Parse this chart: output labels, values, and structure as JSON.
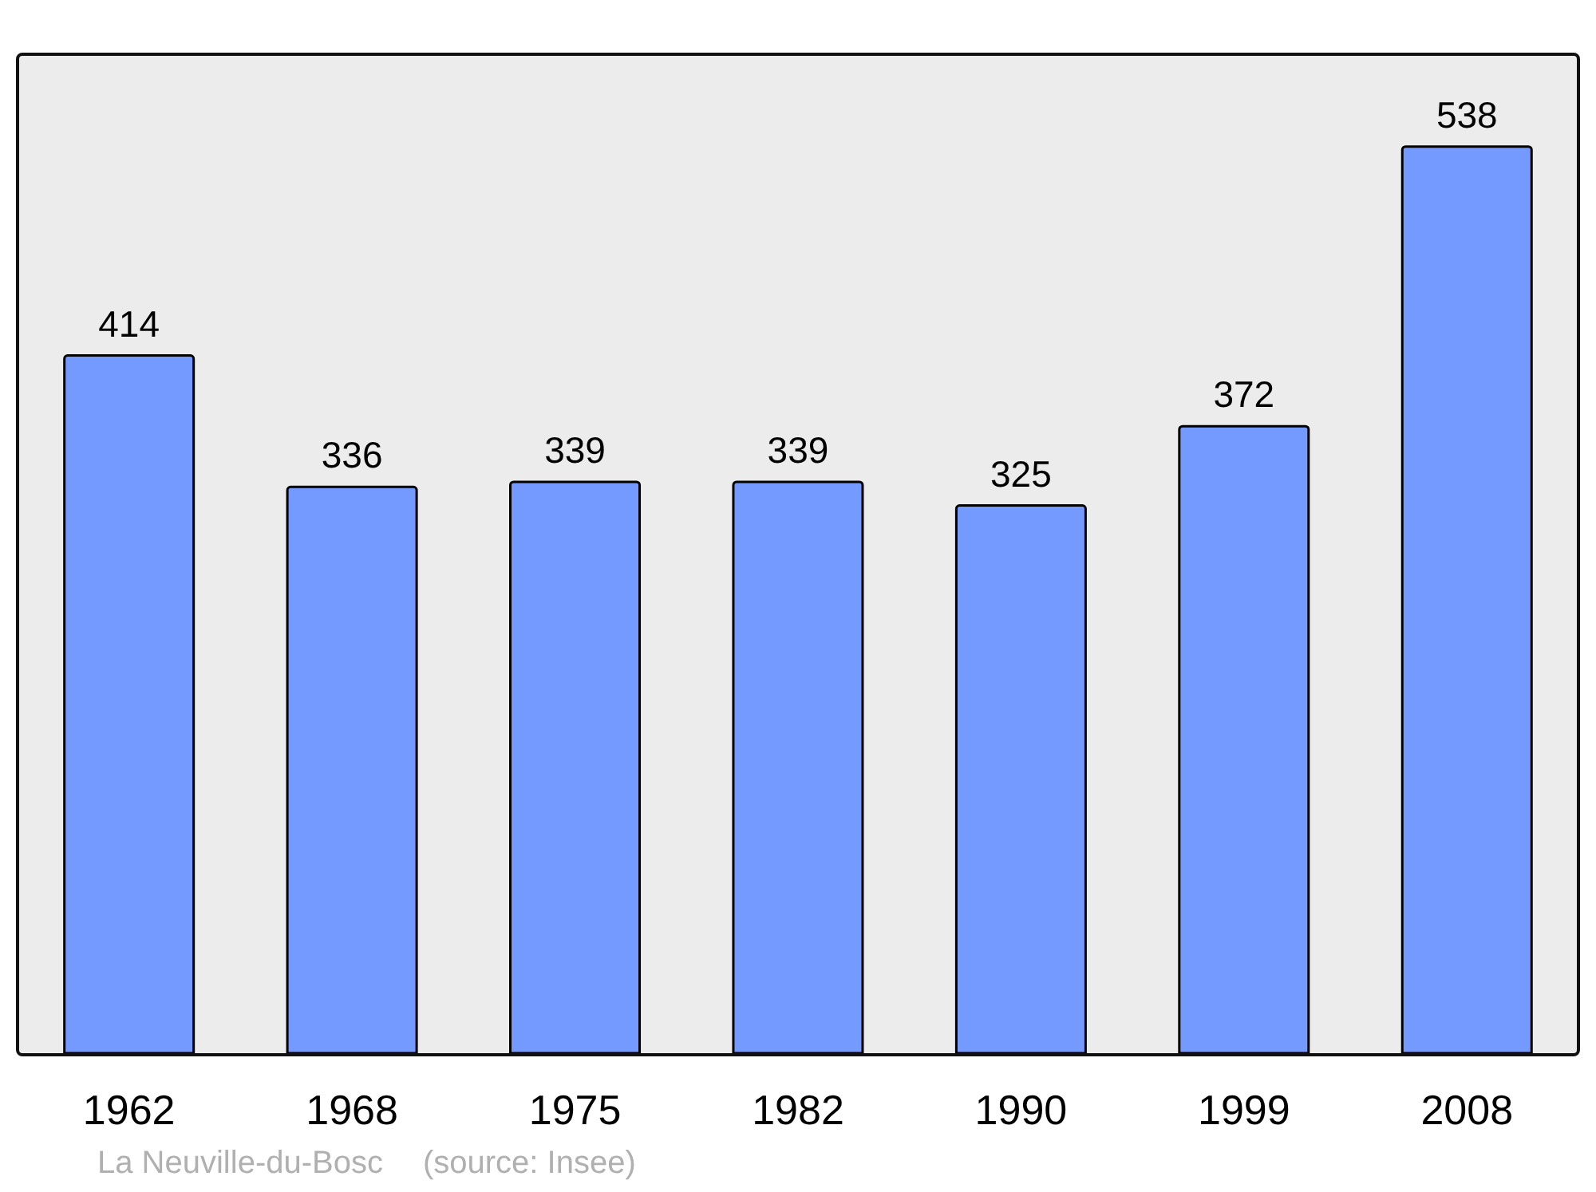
{
  "chart_data": {
    "type": "bar",
    "categories": [
      "1962",
      "1968",
      "1975",
      "1982",
      "1990",
      "1999",
      "2008"
    ],
    "values": [
      414,
      336,
      339,
      339,
      325,
      372,
      538
    ],
    "color": "#7499ff",
    "data_labels": true,
    "annotations": [
      "La Neuville-du-Bosc",
      "(source: Insee)"
    ]
  }
}
